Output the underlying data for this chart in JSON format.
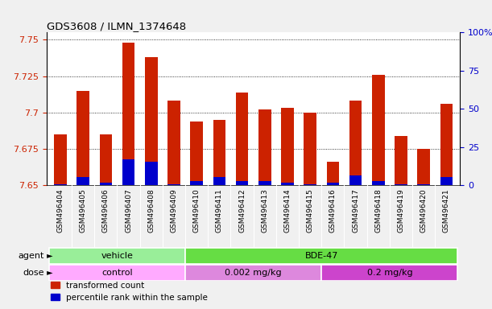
{
  "title": "GDS3608 / ILMN_1374648",
  "samples": [
    "GSM496404",
    "GSM496405",
    "GSM496406",
    "GSM496407",
    "GSM496408",
    "GSM496409",
    "GSM496410",
    "GSM496411",
    "GSM496412",
    "GSM496413",
    "GSM496414",
    "GSM496415",
    "GSM496416",
    "GSM496417",
    "GSM496418",
    "GSM496419",
    "GSM496420",
    "GSM496421"
  ],
  "red_values": [
    7.685,
    7.715,
    7.685,
    7.748,
    7.738,
    7.708,
    7.694,
    7.695,
    7.714,
    7.702,
    7.703,
    7.7,
    7.666,
    7.708,
    7.726,
    7.684,
    7.675,
    7.706
  ],
  "blue_values": [
    7.651,
    7.656,
    7.652,
    7.668,
    7.666,
    7.651,
    7.653,
    7.656,
    7.653,
    7.653,
    7.652,
    7.651,
    7.652,
    7.657,
    7.653,
    7.651,
    7.651,
    7.656
  ],
  "ymin": 7.65,
  "ymax": 7.755,
  "yticks": [
    7.65,
    7.675,
    7.7,
    7.725,
    7.75
  ],
  "ytick_labels": [
    "7.65",
    "7.675",
    "7.7",
    "7.725",
    "7.75"
  ],
  "right_yticks": [
    0,
    25,
    50,
    75,
    100
  ],
  "right_ytick_labels": [
    "0",
    "25",
    "50",
    "75",
    "100%"
  ],
  "agent_groups": [
    {
      "label": "vehicle",
      "start": 0,
      "end": 5,
      "color": "#99ee99"
    },
    {
      "label": "BDE-47",
      "start": 6,
      "end": 17,
      "color": "#66dd44"
    }
  ],
  "dose_groups": [
    {
      "label": "control",
      "start": 0,
      "end": 5,
      "color": "#ffaaff"
    },
    {
      "label": "0.002 mg/kg",
      "start": 6,
      "end": 11,
      "color": "#dd88dd"
    },
    {
      "label": "0.2 mg/kg",
      "start": 12,
      "end": 17,
      "color": "#cc44cc"
    }
  ],
  "bar_color_red": "#cc2200",
  "bar_color_blue": "#0000cc",
  "bar_width": 0.55,
  "plot_bg": "#ffffff",
  "tick_bg": "#d8d8d8",
  "left_label_color": "#cc2200",
  "right_label_color": "#0000cc",
  "title_color": "#000000",
  "agent_label": "agent",
  "dose_label": "dose"
}
